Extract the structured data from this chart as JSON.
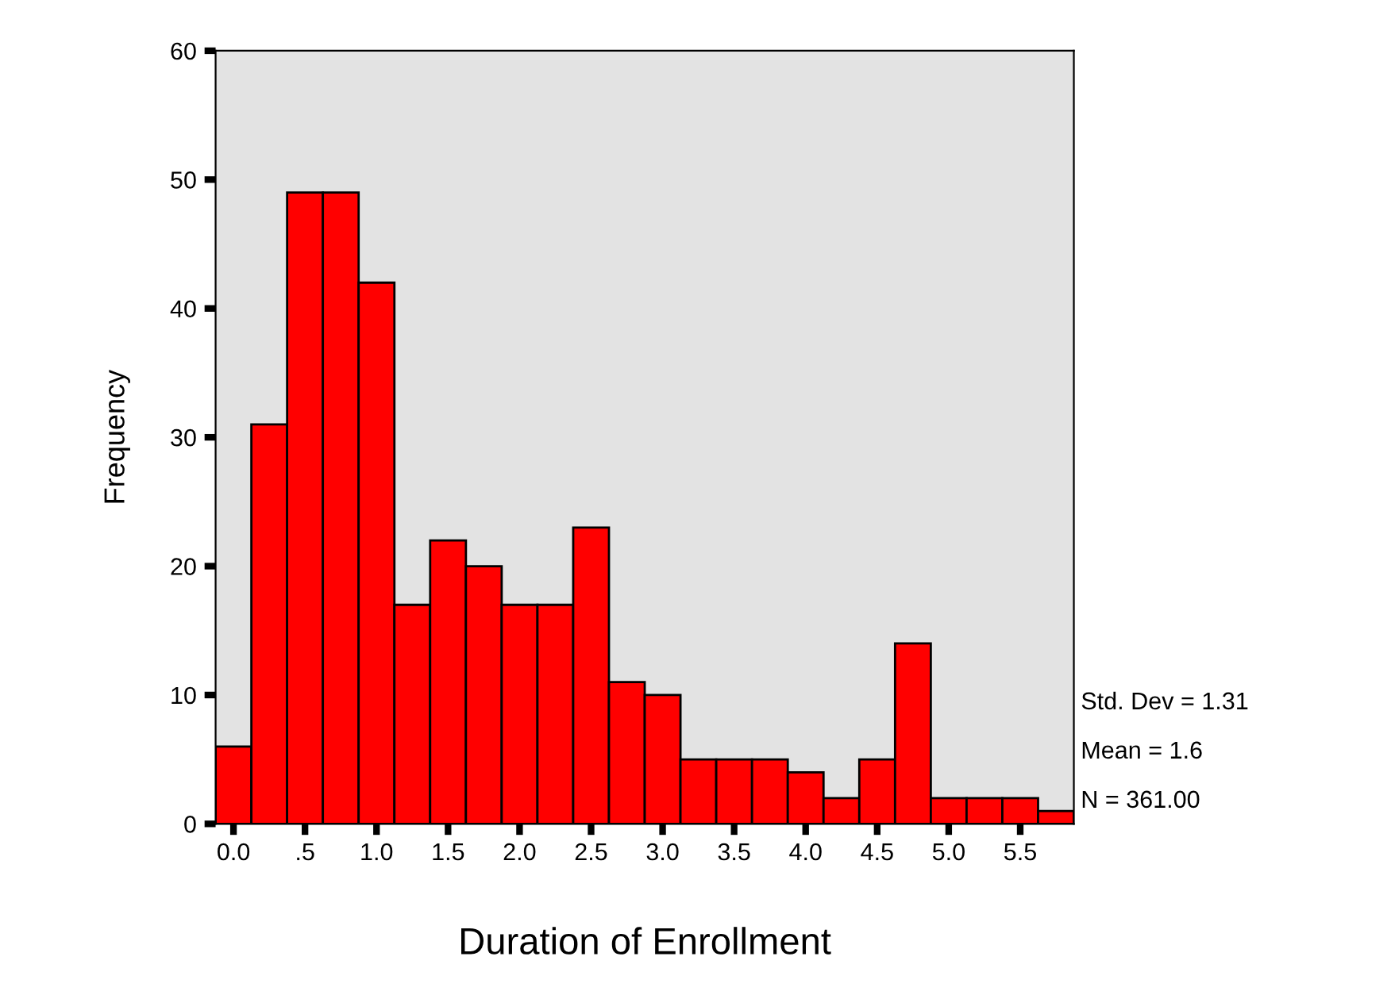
{
  "chart_data": {
    "type": "histogram",
    "xlabel": "Duration of Enrollment",
    "ylabel": "Frequency",
    "bins": [
      -0.125,
      0.125,
      0.375,
      0.625,
      0.875,
      1.125,
      1.375,
      1.625,
      1.875,
      2.125,
      2.375,
      2.625,
      2.875,
      3.125,
      3.375,
      3.625,
      3.875,
      4.125,
      4.375,
      4.625,
      4.875,
      5.125,
      5.375,
      5.625,
      5.875
    ],
    "values": [
      6,
      31,
      49,
      49,
      42,
      17,
      22,
      20,
      17,
      17,
      23,
      11,
      10,
      5,
      5,
      5,
      4,
      2,
      5,
      14,
      2,
      2,
      2,
      1
    ],
    "color": "#ff0000",
    "xlim": [
      -0.125,
      5.875
    ],
    "xticks": [
      {
        "value": 0,
        "label": "0.0"
      },
      {
        "value": 0.5,
        "label": ".5"
      },
      {
        "value": 1,
        "label": "1.0"
      },
      {
        "value": 1.5,
        "label": "1.5"
      },
      {
        "value": 2,
        "label": "2.0"
      },
      {
        "value": 2.5,
        "label": "2.5"
      },
      {
        "value": 3,
        "label": "3.0"
      },
      {
        "value": 3.5,
        "label": "3.5"
      },
      {
        "value": 4,
        "label": "4.0"
      },
      {
        "value": 4.5,
        "label": "4.5"
      },
      {
        "value": 5,
        "label": "5.0"
      },
      {
        "value": 5.5,
        "label": "5.5"
      }
    ],
    "ylim": [
      0,
      60
    ],
    "yticks": [
      0,
      10,
      20,
      30,
      40,
      50,
      60
    ],
    "grid": false,
    "annotations": [
      "Std. Dev = 1.31",
      "Mean = 1.6",
      "N = 361.00"
    ]
  }
}
